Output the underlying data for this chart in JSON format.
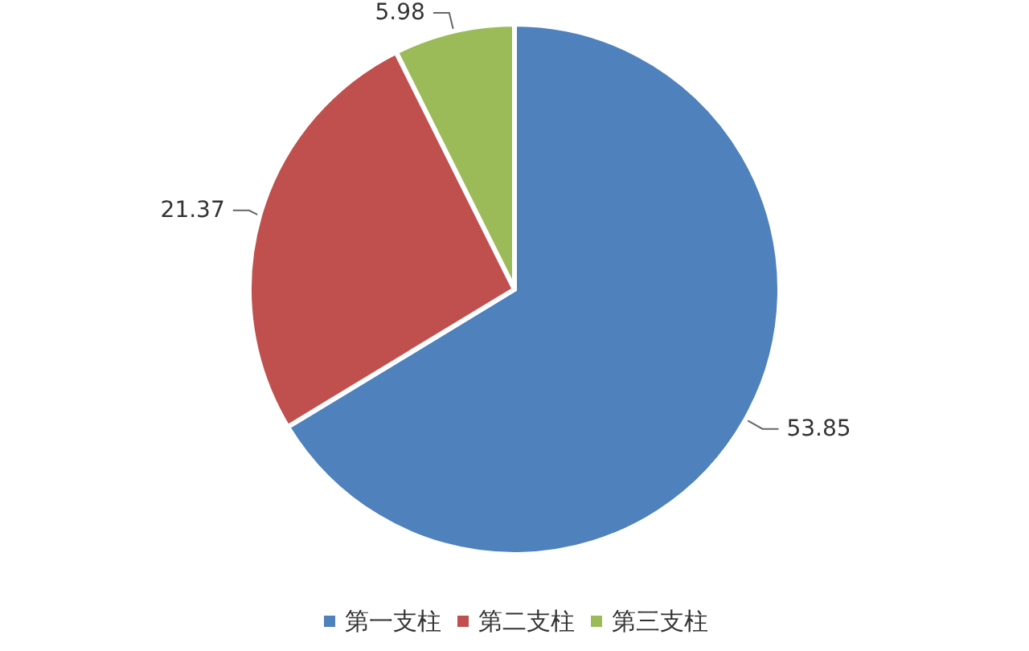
{
  "chart_data": {
    "type": "pie",
    "categories": [
      "第一支柱",
      "第二支柱",
      "第三支柱"
    ],
    "values": [
      53.85,
      21.37,
      5.98
    ],
    "colors": [
      "#4f81bd",
      "#c0504d",
      "#9bbb59"
    ],
    "data_labels": true,
    "legend": "bottom"
  }
}
